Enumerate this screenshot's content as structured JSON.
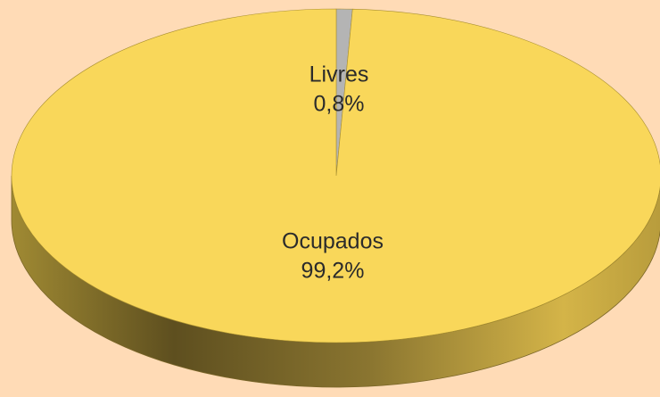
{
  "chart_data": {
    "type": "pie",
    "categories": [
      "Livres",
      "Ocupados"
    ],
    "values": [
      0.8,
      99.2
    ],
    "value_labels": [
      "0,8%",
      "99,2%"
    ],
    "colors": [
      "#b4b4b4",
      "#f9d75a"
    ]
  }
}
